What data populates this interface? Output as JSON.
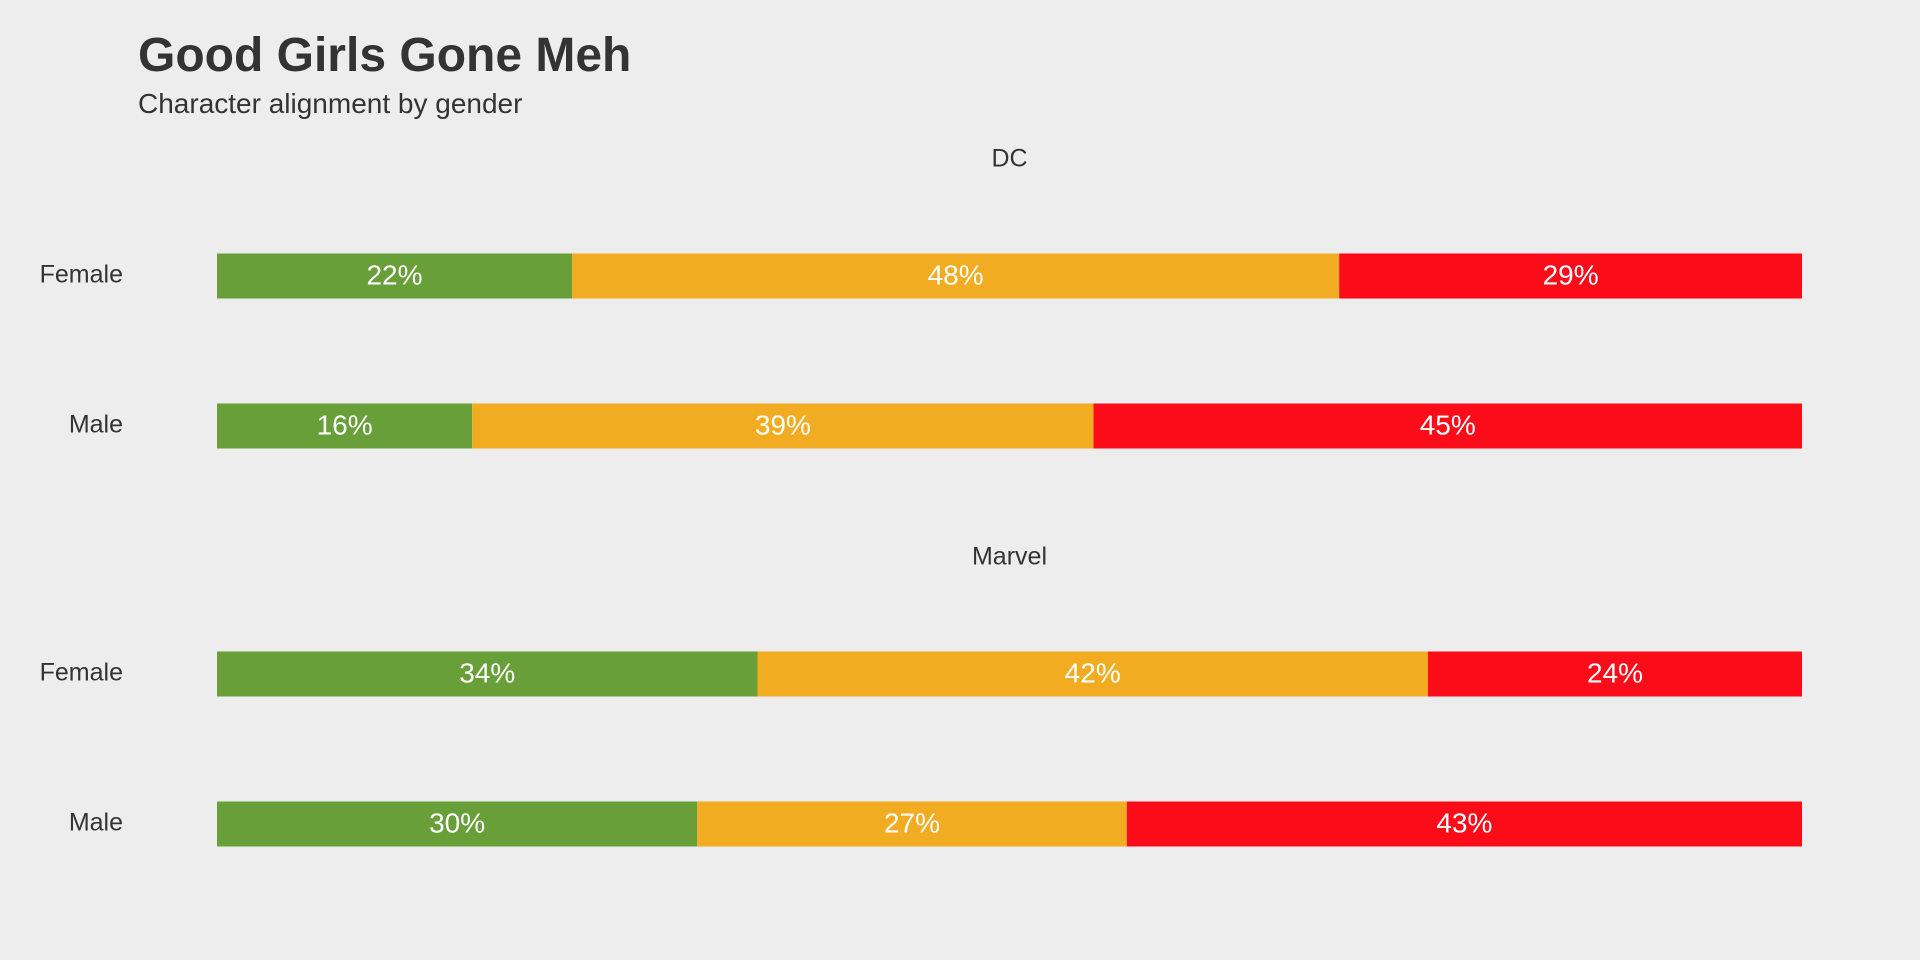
{
  "title": "Good Girls Gone Meh",
  "subtitle": "Character alignment by gender",
  "chart_data": {
    "type": "bar",
    "orientation": "horizontal",
    "stacked": true,
    "normalized_percent": true,
    "grid": false,
    "legend": "none",
    "colors": [
      "#689f38",
      "#f2ac22",
      "#fc0b19"
    ],
    "panels": [
      {
        "title": "DC",
        "categories": [
          "Female",
          "Male"
        ],
        "series": [
          {
            "color": "#689f38",
            "values": [
              22.4,
              16.1
            ],
            "labels": [
              "22%",
              "16%"
            ]
          },
          {
            "color": "#f2ac22",
            "values": [
              48.4,
              39.2
            ],
            "labels": [
              "48%",
              "39%"
            ]
          },
          {
            "color": "#fc0b19",
            "values": [
              29.2,
              44.7
            ],
            "labels": [
              "29%",
              "45%"
            ]
          }
        ]
      },
      {
        "title": "Marvel",
        "categories": [
          "Female",
          "Male"
        ],
        "series": [
          {
            "color": "#689f38",
            "values": [
              34.1,
              30.3
            ],
            "labels": [
              "34%",
              "30%"
            ]
          },
          {
            "color": "#f2ac22",
            "values": [
              42.3,
              27.1
            ],
            "labels": [
              "42%",
              "27%"
            ]
          },
          {
            "color": "#fc0b19",
            "values": [
              23.6,
              42.6
            ],
            "labels": [
              "24%",
              "43%"
            ]
          }
        ]
      }
    ]
  }
}
